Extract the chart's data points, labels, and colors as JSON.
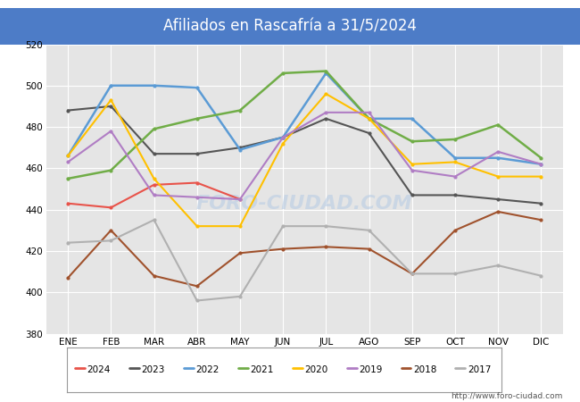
{
  "title": "Afiliados en Rascafría a 31/5/2024",
  "title_color": "white",
  "title_bg_color": "#4d7cc7",
  "ylim": [
    380,
    520
  ],
  "yticks": [
    380,
    400,
    420,
    440,
    460,
    480,
    500,
    520
  ],
  "months": [
    "ENE",
    "FEB",
    "MAR",
    "ABR",
    "MAY",
    "JUN",
    "JUL",
    "AGO",
    "SEP",
    "OCT",
    "NOV",
    "DIC"
  ],
  "watermark": "FORO-CIUDAD.COM",
  "url": "http://www.foro-ciudad.com",
  "bg_plot": "#e5e5e5",
  "grid_color": "white",
  "series": [
    {
      "year": "2024",
      "color": "#e8534a",
      "linewidth": 1.5,
      "data": [
        443,
        441,
        452,
        453,
        445,
        null,
        null,
        null,
        null,
        null,
        null,
        null
      ]
    },
    {
      "year": "2023",
      "color": "#555555",
      "linewidth": 1.5,
      "data": [
        488,
        490,
        467,
        467,
        470,
        475,
        484,
        477,
        447,
        447,
        445,
        443
      ]
    },
    {
      "year": "2022",
      "color": "#5b9bd5",
      "linewidth": 1.8,
      "data": [
        466,
        500,
        500,
        499,
        469,
        475,
        506,
        484,
        484,
        465,
        465,
        462
      ]
    },
    {
      "year": "2021",
      "color": "#70ad47",
      "linewidth": 1.8,
      "data": [
        455,
        459,
        479,
        484,
        488,
        506,
        507,
        484,
        473,
        474,
        481,
        465
      ]
    },
    {
      "year": "2020",
      "color": "#ffc000",
      "linewidth": 1.5,
      "data": [
        466,
        493,
        455,
        432,
        432,
        472,
        496,
        484,
        462,
        463,
        456,
        456
      ]
    },
    {
      "year": "2019",
      "color": "#b07dc4",
      "linewidth": 1.5,
      "data": [
        463,
        478,
        447,
        446,
        445,
        475,
        487,
        487,
        459,
        456,
        468,
        462
      ]
    },
    {
      "year": "2018",
      "color": "#a0522d",
      "linewidth": 1.5,
      "data": [
        407,
        430,
        408,
        403,
        419,
        421,
        422,
        421,
        409,
        430,
        439,
        435
      ]
    },
    {
      "year": "2017",
      "color": "#b0b0b0",
      "linewidth": 1.5,
      "data": [
        424,
        425,
        435,
        396,
        398,
        432,
        432,
        430,
        409,
        409,
        413,
        408
      ]
    }
  ]
}
